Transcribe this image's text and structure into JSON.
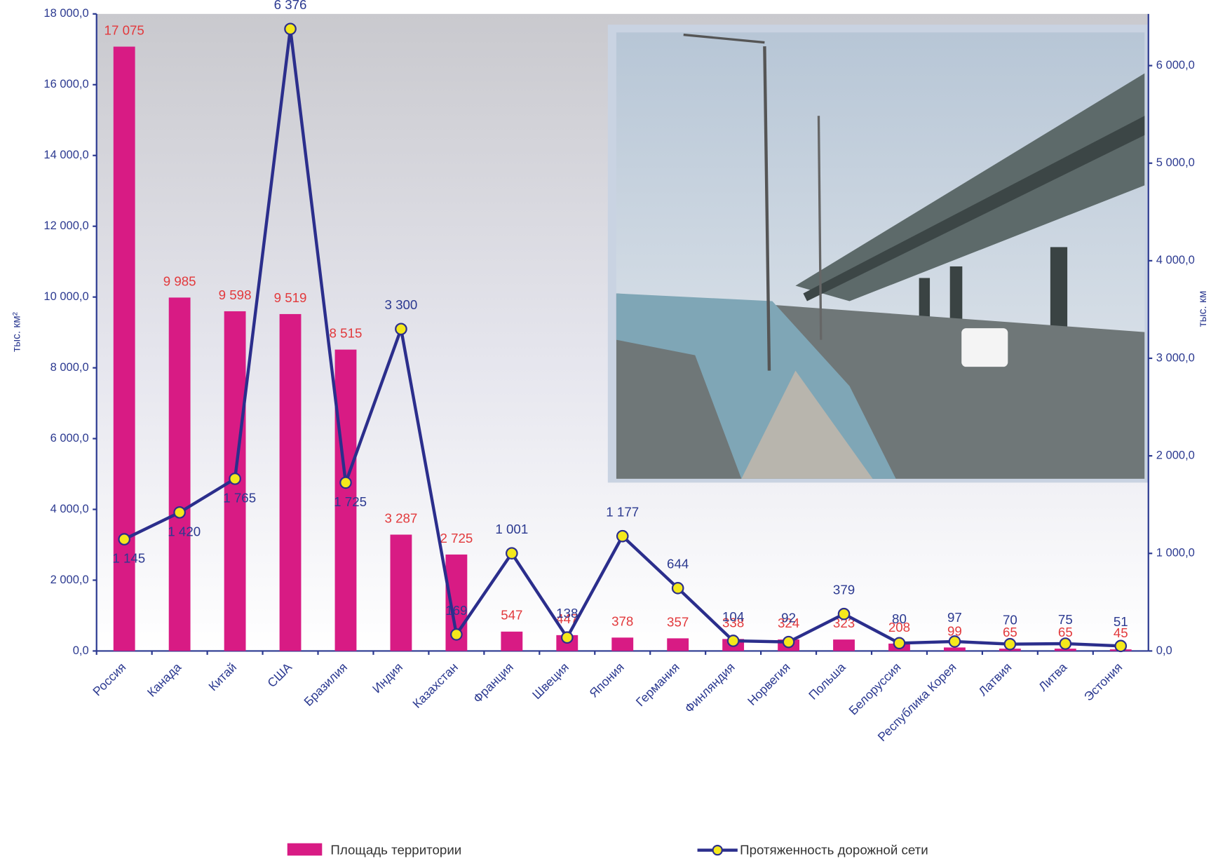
{
  "chart_data": {
    "type": "bar",
    "categories": [
      "Россия",
      "Канада",
      "Китай",
      "США",
      "Бразилия",
      "Индия",
      "Казахстан",
      "Франция",
      "Швеция",
      "Япония",
      "Германия",
      "Финляндия",
      "Норвегия",
      "Польша",
      "Белоруссия",
      "Республика Корея",
      "Латвия",
      "Литва",
      "Эстония"
    ],
    "series": [
      {
        "name": "Площадь территории",
        "type": "bar",
        "color": "#d81b84",
        "values": [
          17075,
          9985,
          9598,
          9519,
          8515,
          3287,
          2725,
          547,
          447,
          378,
          357,
          338,
          324,
          323,
          208,
          99,
          65,
          65,
          45
        ],
        "value_labels": [
          "17 075",
          "9 985",
          "9 598",
          "9 519",
          "8 515",
          "3 287",
          "2 725",
          "547",
          "447",
          "378",
          "357",
          "338",
          "324",
          "323",
          "208",
          "99",
          "65",
          "65",
          "45"
        ]
      },
      {
        "name": "Протяженность дорожной сети",
        "type": "line",
        "axis": "y2",
        "color": "#2b2e8c",
        "marker_color": "#f4e81c",
        "values": [
          1145,
          1420,
          1765,
          6376,
          1725,
          3300,
          169,
          1001,
          138,
          1177,
          644,
          104,
          92,
          379,
          80,
          97,
          70,
          75,
          51
        ],
        "value_labels": [
          "1 145",
          "1 420",
          "1 765",
          "6 376",
          "1 725",
          "3 300",
          "169",
          "1 001",
          "138",
          "1 177",
          "644",
          "104",
          "92",
          "379",
          "80",
          "97",
          "70",
          "75",
          "51"
        ]
      }
    ],
    "ylabel": "тыс. км²",
    "y2label": "тыс. км",
    "ylim": [
      0,
      18000
    ],
    "yticks": [
      {
        "value": 0,
        "label": "0,0"
      },
      {
        "value": 2000,
        "label": "2 000,0"
      },
      {
        "value": 4000,
        "label": "4 000,0"
      },
      {
        "value": 6000,
        "label": "6 000,0"
      },
      {
        "value": 8000,
        "label": "8 000,0"
      },
      {
        "value": 10000,
        "label": "10 000,0"
      },
      {
        "value": 12000,
        "label": "12 000,0"
      },
      {
        "value": 14000,
        "label": "14 000,0"
      },
      {
        "value": 16000,
        "label": "16 000,0"
      },
      {
        "value": 18000,
        "label": "18 000,0"
      }
    ],
    "y2lim": [
      0,
      6530
    ],
    "y2ticks": [
      {
        "value": 0,
        "label": "0,0"
      },
      {
        "value": 1000,
        "label": "1 000,0"
      },
      {
        "value": 2000,
        "label": "2 000,0"
      },
      {
        "value": 3000,
        "label": "3 000,0"
      },
      {
        "value": 4000,
        "label": "4 000,0"
      },
      {
        "value": 5000,
        "label": "5 000,0"
      },
      {
        "value": 6000,
        "label": "6 000,0"
      }
    ],
    "legend": "bottom"
  }
}
